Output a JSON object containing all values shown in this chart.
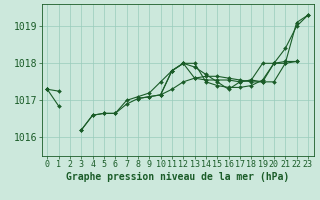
{
  "title": "Graphe pression niveau de la mer (hPa)",
  "hours": [
    0,
    1,
    2,
    3,
    4,
    5,
    6,
    7,
    8,
    9,
    10,
    11,
    12,
    13,
    14,
    15,
    16,
    17,
    18,
    19,
    20,
    21,
    22,
    23
  ],
  "ylim": [
    1015.5,
    1019.6
  ],
  "yticks": [
    1016,
    1017,
    1018,
    1019
  ],
  "xlim": [
    -0.5,
    23.5
  ],
  "background_color": "#cce8dc",
  "grid_color": "#99ccbb",
  "line_color": "#1a5c28",
  "series": [
    [
      1017.3,
      1016.85,
      null,
      null,
      null,
      null,
      null,
      null,
      1017.05,
      1017.1,
      1017.15,
      1017.8,
      1018.0,
      1017.6,
      1017.55,
      1017.55,
      1017.55,
      1017.5,
      1017.55,
      1017.5,
      1018.0,
      1018.4,
      1019.0,
      1019.3
    ],
    [
      1017.3,
      null,
      null,
      1016.2,
      1016.6,
      1016.65,
      1016.65,
      1016.9,
      1017.05,
      1017.1,
      1017.15,
      1017.8,
      1018.0,
      1017.9,
      1017.7,
      1017.5,
      1017.3,
      1017.5,
      1017.55,
      1018.0,
      1018.0,
      1018.0,
      1019.1,
      1019.3
    ],
    [
      null,
      null,
      null,
      1016.2,
      1016.6,
      1016.65,
      1016.65,
      1017.0,
      1017.1,
      1017.2,
      1017.5,
      1017.8,
      1018.0,
      1018.0,
      1017.5,
      1017.4,
      1017.35,
      1017.35,
      1017.4,
      1017.55,
      1018.0,
      1018.05,
      1018.05,
      null
    ],
    [
      1017.3,
      1017.25,
      null,
      null,
      null,
      null,
      null,
      null,
      null,
      null,
      1017.15,
      1017.3,
      1017.5,
      1017.6,
      1017.65,
      1017.65,
      1017.6,
      1017.55,
      1017.5,
      1017.5,
      1017.5,
      1018.0,
      1018.05,
      null
    ]
  ],
  "tick_fontsize": 6,
  "title_fontsize": 7,
  "marker_size": 2.0,
  "line_width": 0.8
}
